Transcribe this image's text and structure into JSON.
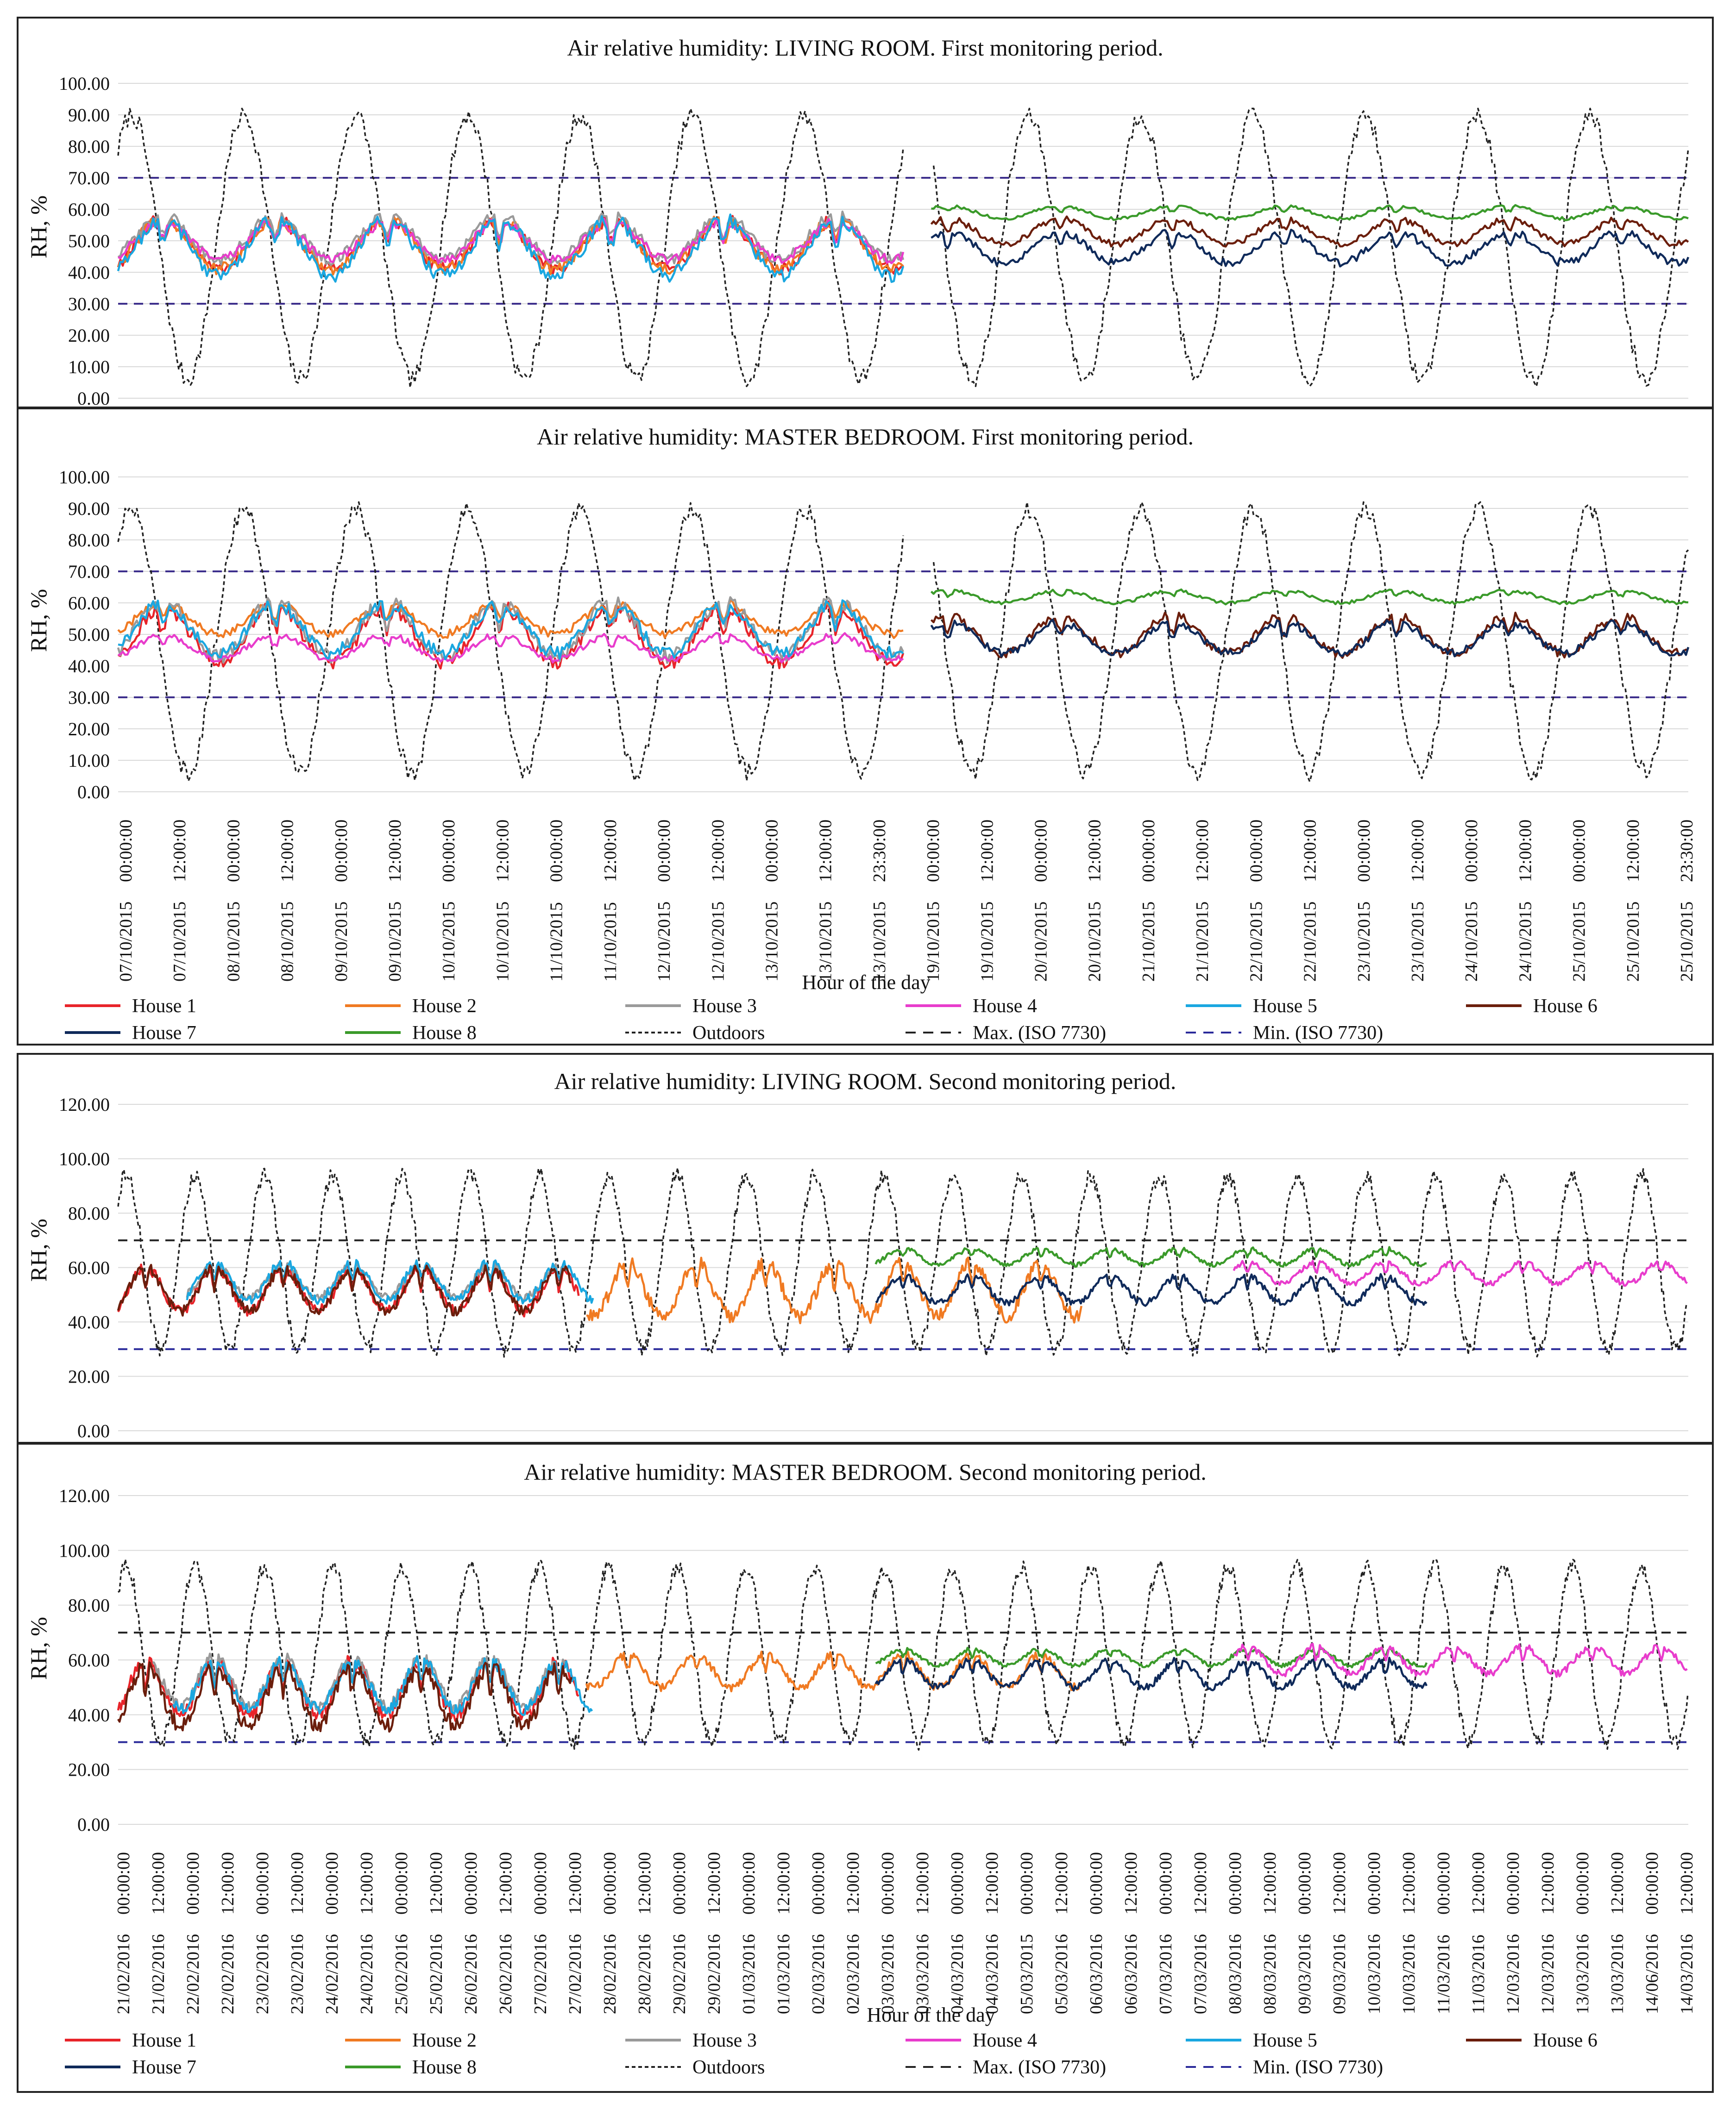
{
  "y_axis_label": "RH, %",
  "x_axis_label": "Hour of the day",
  "colors": {
    "house1": "#e8242a",
    "house2": "#f07a22",
    "house3": "#9a9a9a",
    "house4": "#e83ccc",
    "house5": "#1aa7e0",
    "house6": "#6b1e0c",
    "house7": "#0f2a5a",
    "house8": "#3a9a2a",
    "outdoors": "#222222",
    "iso_max_first": "#3d2f8c",
    "iso_min_first": "#3d2f8c",
    "iso_max_second": "#222222",
    "iso_min_second": "#2a2a9a"
  },
  "legend_rows": [
    [
      {
        "label": "House 1",
        "key": "house1",
        "dash": ""
      },
      {
        "label": "House 2",
        "key": "house2",
        "dash": ""
      },
      {
        "label": "House 3",
        "key": "house3",
        "dash": ""
      },
      {
        "label": "House 4",
        "key": "house4",
        "dash": ""
      },
      {
        "label": "House 5",
        "key": "house5",
        "dash": ""
      },
      {
        "label": "House 6",
        "key": "house6",
        "dash": ""
      }
    ],
    [
      {
        "label": "House 7",
        "key": "house7",
        "dash": ""
      },
      {
        "label": "House 8",
        "key": "house8",
        "dash": ""
      },
      {
        "label": "Outdoors",
        "key": "outdoors",
        "dash": "8 6"
      },
      {
        "label": "Max. (ISO 7730)",
        "key": "iso_max_second",
        "dash": "22 16"
      },
      {
        "label": "Min. (ISO 7730)",
        "key": "iso_min_second",
        "dash": "22 16"
      }
    ]
  ],
  "first_period_ticks": [
    "07/10/2015 00:00:00",
    "07/10/2015 12:00:00",
    "08/10/2015 00:00:00",
    "08/10/2015 12:00:00",
    "09/10/2015 00:00:00",
    "09/10/2015 12:00:00",
    "10/10/2015 00:00:00",
    "10/10/2015 12:00:00",
    "11/10/2015 00:00:00",
    "11/10/2015 12:00:00",
    "12/10/2015 00:00:00",
    "12/10/2015 12:00:00",
    "13/10/2015 00:00:00",
    "13/10/2015 12:00:00",
    "13/10/2015 23:30:00",
    "19/10/2015 00:00:00",
    "19/10/2015 12:00:00",
    "20/10/2015 00:00:00",
    "20/10/2015 12:00:00",
    "21/10/2015 00:00:00",
    "21/10/2015 12:00:00",
    "22/10/2015 00:00:00",
    "22/10/2015 12:00:00",
    "23/10/2015 00:00:00",
    "23/10/2015 12:00:00",
    "24/10/2015 00:00:00",
    "24/10/2015 12:00:00",
    "25/10/2015 00:00:00",
    "25/10/2015 12:00:00",
    "25/10/2015 23:30:00"
  ],
  "second_period_ticks": [
    "21/02/2016 00:00:00",
    "21/02/2016 12:00:00",
    "22/02/2016 00:00:00",
    "22/02/2016 12:00:00",
    "23/02/2016 00:00:00",
    "23/02/2016 12:00:00",
    "24/02/2016 00:00:00",
    "24/02/2016 12:00:00",
    "25/02/2016 00:00:00",
    "25/02/2016 12:00:00",
    "26/02/2016 00:00:00",
    "26/02/2016 12:00:00",
    "27/02/2016 00:00:00",
    "27/02/2016 12:00:00",
    "28/02/2016 00:00:00",
    "28/02/2016 12:00:00",
    "29/02/2016 00:00:00",
    "29/02/2016 12:00:00",
    "01/03/2016 00:00:00",
    "01/03/2016 12:00:00",
    "02/03/2016 00:00:00",
    "02/03/2016 12:00:00",
    "03/03/2016 00:00:00",
    "03/03/2016 12:00:00",
    "04/03/2016 00:00:00",
    "04/03/2016 12:00:00",
    "05/03/2015 00:00:00",
    "05/03/2016 12:00:00",
    "06/03/2016 00:00:00",
    "06/03/2016 12:00:00",
    "07/03/2016 00:00:00",
    "07/03/2016 12:00:00",
    "08/03/2016 00:00:00",
    "08/03/2016 12:00:00",
    "09/03/2016 00:00:00",
    "09/03/2016 12:00:00",
    "10/03/2016 00:00:00",
    "10/03/2016 12:00:00",
    "11/03/2016 00:00:00",
    "11/03/2016 12:00:00",
    "12/03/2016 00:00:00",
    "12/03/2016 12:00:00",
    "13/03/2016 00:00:00",
    "13/03/2016 12:00:00",
    "14/06/2016 00:00:00",
    "14/03/2016 12:00:00"
  ],
  "chart_data": [
    {
      "type": "line",
      "title": "Air relative humidity: LIVING ROOM. First monitoring period.",
      "ylabel": "RH, %",
      "ylim": [
        0,
        100
      ],
      "yticks": [
        "0.00",
        "10.00",
        "20.00",
        "30.00",
        "40.00",
        "50.00",
        "60.00",
        "70.00",
        "80.00",
        "90.00",
        "100.00"
      ],
      "x_start_day": 0,
      "x_end_day": 14,
      "gap": [
        7,
        7.25
      ],
      "iso_max": 70,
      "iso_min": 30,
      "iso_style": "first",
      "series": [
        {
          "name": "Outdoors",
          "key": "outdoors",
          "kind": "outdoor",
          "from": 0,
          "to": 14,
          "base": 48,
          "amp": 42
        },
        {
          "name": "House 1",
          "key": "house1",
          "kind": "indoor",
          "from": 0,
          "to": 7,
          "base": 49,
          "amp": 8
        },
        {
          "name": "House 2",
          "key": "house2",
          "kind": "indoor",
          "from": 0,
          "to": 7,
          "base": 49,
          "amp": 8
        },
        {
          "name": "House 3",
          "key": "house3",
          "kind": "indoor",
          "from": 0,
          "to": 7,
          "base": 51,
          "amp": 7
        },
        {
          "name": "House 4",
          "key": "house4",
          "kind": "indoor",
          "from": 0,
          "to": 7,
          "base": 50,
          "amp": 6
        },
        {
          "name": "House 5",
          "key": "house5",
          "kind": "indoor",
          "from": 0,
          "to": 7,
          "base": 48,
          "amp": 9
        },
        {
          "name": "House 6",
          "key": "house6",
          "kind": "indoor",
          "from": 7.25,
          "to": 14,
          "base": 53,
          "amp": 4
        },
        {
          "name": "House 7",
          "key": "house7",
          "kind": "indoor",
          "from": 7.25,
          "to": 14,
          "base": 48,
          "amp": 5
        },
        {
          "name": "House 8",
          "key": "house8",
          "kind": "indoor",
          "from": 7.25,
          "to": 14,
          "base": 59,
          "amp": 2
        }
      ]
    },
    {
      "type": "line",
      "title": "Air relative humidity: MASTER BEDROOM. First monitoring period.",
      "ylabel": "RH, %",
      "ylim": [
        0,
        100
      ],
      "yticks": [
        "0.00",
        "10.00",
        "20.00",
        "30.00",
        "40.00",
        "50.00",
        "60.00",
        "70.00",
        "80.00",
        "90.00",
        "100.00"
      ],
      "x_start_day": 0,
      "x_end_day": 14,
      "gap": [
        7,
        7.25
      ],
      "iso_max": 70,
      "iso_min": 30,
      "iso_style": "first",
      "series": [
        {
          "name": "Outdoors",
          "key": "outdoors",
          "kind": "outdoor",
          "from": 0,
          "to": 14,
          "base": 48,
          "amp": 42
        },
        {
          "name": "House 1",
          "key": "house1",
          "kind": "indoor",
          "from": 0,
          "to": 7,
          "base": 50,
          "amp": 9
        },
        {
          "name": "House 2",
          "key": "house2",
          "kind": "indoor",
          "from": 0,
          "to": 7,
          "base": 55,
          "amp": 5
        },
        {
          "name": "House 3",
          "key": "house3",
          "kind": "indoor",
          "from": 0,
          "to": 7,
          "base": 52,
          "amp": 9
        },
        {
          "name": "House 4",
          "key": "house4",
          "kind": "indoor",
          "from": 0,
          "to": 7,
          "base": 46,
          "amp": 4
        },
        {
          "name": "House 5",
          "key": "house5",
          "kind": "indoor",
          "from": 0,
          "to": 7,
          "base": 52,
          "amp": 8
        },
        {
          "name": "House 6",
          "key": "house6",
          "kind": "indoor",
          "from": 7.25,
          "to": 14,
          "base": 50,
          "amp": 6
        },
        {
          "name": "House 7",
          "key": "house7",
          "kind": "indoor",
          "from": 7.25,
          "to": 14,
          "base": 49,
          "amp": 5
        },
        {
          "name": "House 8",
          "key": "house8",
          "kind": "indoor",
          "from": 7.25,
          "to": 14,
          "base": 62,
          "amp": 2
        }
      ]
    },
    {
      "type": "line",
      "title": "Air relative humidity: LIVING ROOM. Second monitoring period.",
      "ylabel": "RH, %",
      "ylim": [
        0,
        120
      ],
      "yticks": [
        "0.00",
        "20.00",
        "40.00",
        "60.00",
        "80.00",
        "100.00",
        "120.00"
      ],
      "x_start_day": 0,
      "x_end_day": 22.8,
      "gap": null,
      "iso_max": 70,
      "iso_min": 30,
      "iso_style": "second",
      "series": [
        {
          "name": "Outdoors",
          "key": "outdoors",
          "kind": "outdoor",
          "from": 0,
          "to": 22.8,
          "base": 62,
          "amp": 32
        },
        {
          "name": "House 1",
          "key": "house1",
          "kind": "indoor",
          "from": 0,
          "to": 6.7,
          "base": 52,
          "amp": 8
        },
        {
          "name": "House 3",
          "key": "house3",
          "kind": "indoor",
          "from": 1.0,
          "to": 6.5,
          "base": 55,
          "amp": 6
        },
        {
          "name": "House 5",
          "key": "house5",
          "kind": "indoor",
          "from": 1.0,
          "to": 6.9,
          "base": 55,
          "amp": 7
        },
        {
          "name": "House 6",
          "key": "house6",
          "kind": "indoor",
          "from": 0,
          "to": 6.6,
          "base": 52,
          "amp": 8
        },
        {
          "name": "House 2",
          "key": "house2",
          "kind": "indoor",
          "from": 6.8,
          "to": 14.0,
          "base": 52,
          "amp": 10
        },
        {
          "name": "House 7",
          "key": "house7",
          "kind": "indoor",
          "from": 11.0,
          "to": 19.0,
          "base": 52,
          "amp": 5
        },
        {
          "name": "House 8",
          "key": "house8",
          "kind": "indoor",
          "from": 11.0,
          "to": 19.0,
          "base": 64,
          "amp": 3
        },
        {
          "name": "House 4",
          "key": "house4",
          "kind": "indoor",
          "from": 16.2,
          "to": 22.8,
          "base": 58,
          "amp": 4
        }
      ]
    },
    {
      "type": "line",
      "title": "Air relative humidity: MASTER BEDROOM. Second monitoring period.",
      "ylabel": "RH, %",
      "ylim": [
        0,
        120
      ],
      "yticks": [
        "0.00",
        "20.00",
        "40.00",
        "60.00",
        "80.00",
        "100.00",
        "120.00"
      ],
      "x_start_day": 0,
      "x_end_day": 22.8,
      "gap": null,
      "iso_max": 70,
      "iso_min": 30,
      "iso_style": "second",
      "series": [
        {
          "name": "Outdoors",
          "key": "outdoors",
          "kind": "outdoor",
          "from": 0,
          "to": 22.8,
          "base": 62,
          "amp": 32
        },
        {
          "name": "House 1",
          "key": "house1",
          "kind": "indoor",
          "from": 0,
          "to": 6.7,
          "base": 50,
          "amp": 10
        },
        {
          "name": "House 3",
          "key": "house3",
          "kind": "indoor",
          "from": 0.5,
          "to": 6.5,
          "base": 52,
          "amp": 9
        },
        {
          "name": "House 5",
          "key": "house5",
          "kind": "indoor",
          "from": 0.8,
          "to": 6.9,
          "base": 51,
          "amp": 9
        },
        {
          "name": "House 6",
          "key": "house6",
          "kind": "indoor",
          "from": 0,
          "to": 6.6,
          "base": 47,
          "amp": 11
        },
        {
          "name": "House 2",
          "key": "house2",
          "kind": "indoor",
          "from": 6.8,
          "to": 14.0,
          "base": 56,
          "amp": 6
        },
        {
          "name": "House 7",
          "key": "house7",
          "kind": "indoor",
          "from": 11.0,
          "to": 19.0,
          "base": 55,
          "amp": 5
        },
        {
          "name": "House 8",
          "key": "house8",
          "kind": "indoor",
          "from": 11.0,
          "to": 19.0,
          "base": 61,
          "amp": 3
        },
        {
          "name": "House 4",
          "key": "house4",
          "kind": "indoor",
          "from": 16.2,
          "to": 22.8,
          "base": 60,
          "amp": 5
        }
      ]
    }
  ]
}
